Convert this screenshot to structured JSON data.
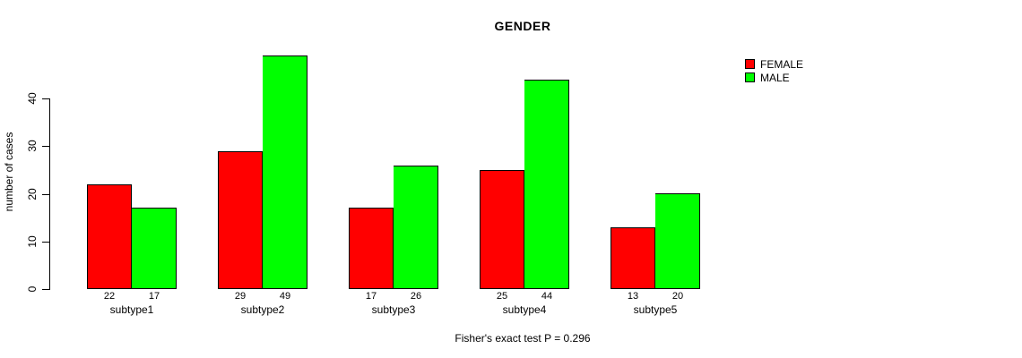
{
  "title": "GENDER",
  "y_axis_label": "number of cases",
  "caption": "Fisher's exact test P = 0.296",
  "colors": {
    "female": "#FF0000",
    "male": "#00FF00",
    "axis": "#000000",
    "background": "#FFFFFF"
  },
  "legend": {
    "position": "top-right",
    "entries": [
      {
        "label": "FEMALE",
        "color": "#FF0000"
      },
      {
        "label": "MALE",
        "color": "#00FF00"
      }
    ]
  },
  "chart_data": {
    "type": "bar",
    "title": "GENDER",
    "xlabel": "",
    "ylabel": "number of cases",
    "categories": [
      "subtype1",
      "subtype2",
      "subtype3",
      "subtype4",
      "subtype5"
    ],
    "series": [
      {
        "name": "FEMALE",
        "color": "#FF0000",
        "values": [
          22,
          29,
          17,
          25,
          13
        ]
      },
      {
        "name": "MALE",
        "color": "#00FF00",
        "values": [
          17,
          49,
          26,
          44,
          20
        ]
      }
    ],
    "bar_value_labels": [
      [
        22,
        17
      ],
      [
        29,
        49
      ],
      [
        17,
        26
      ],
      [
        25,
        44
      ],
      [
        13,
        20
      ]
    ],
    "yticks": [
      0,
      10,
      20,
      30,
      40
    ],
    "ylim": [
      0,
      49
    ],
    "grid": false,
    "legend_position": "top-right",
    "annotation": "Fisher's exact test P = 0.296"
  }
}
